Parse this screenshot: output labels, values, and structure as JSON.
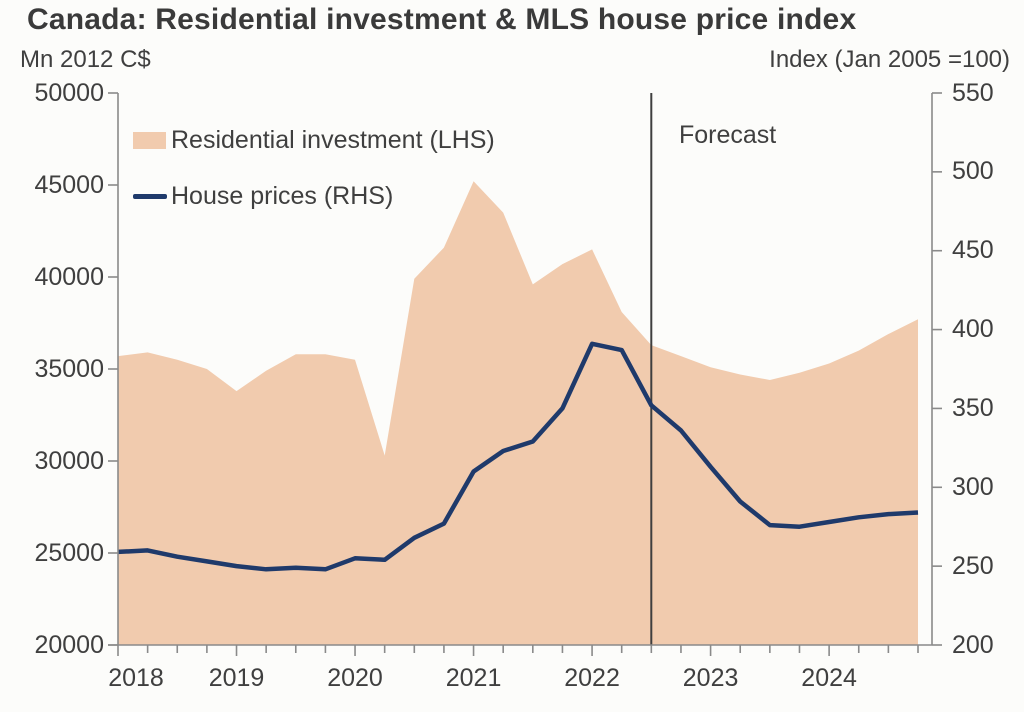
{
  "title": "Canada: Residential investment & MLS house price index",
  "axis_units": {
    "left": "Mn 2012 C$",
    "right": "Index (Jan 2005 =100)"
  },
  "legend": [
    {
      "label": "Residential investment (LHS)",
      "swatch": "area"
    },
    {
      "label": "House prices (RHS)",
      "swatch": "line"
    }
  ],
  "annotations": {
    "forecast_label": "Forecast",
    "forecast_start": "2022Q3"
  },
  "colors": {
    "area_fill": "#f1cbae",
    "line": "#1f3a6b",
    "axis": "#8a8a8a",
    "text": "#3f3f3f",
    "forecast_divider": "#3f3f3f",
    "background": "#fcfcfa"
  },
  "chart_data": {
    "type": "area+line",
    "title": "Canada: Residential investment & MLS house price index",
    "frequency": "quarterly",
    "grid": false,
    "legend_position": "top-left-inside",
    "x": [
      "2018Q1",
      "2018Q2",
      "2018Q3",
      "2018Q4",
      "2019Q1",
      "2019Q2",
      "2019Q3",
      "2019Q4",
      "2020Q1",
      "2020Q2",
      "2020Q3",
      "2020Q4",
      "2021Q1",
      "2021Q2",
      "2021Q3",
      "2021Q4",
      "2022Q1",
      "2022Q2",
      "2022Q3",
      "2022Q4",
      "2023Q1",
      "2023Q2",
      "2023Q3",
      "2023Q4",
      "2024Q1",
      "2024Q2",
      "2024Q3",
      "2024Q4"
    ],
    "x_year_labels": [
      "2018",
      "2019",
      "2020",
      "2021",
      "2022",
      "2023",
      "2024"
    ],
    "series": [
      {
        "name": "Residential investment (LHS)",
        "type": "area",
        "axis": "left",
        "color": "#f1cbae",
        "values": [
          35700,
          35900,
          35500,
          35000,
          33800,
          34900,
          35800,
          35800,
          35500,
          30300,
          39900,
          41600,
          45200,
          43500,
          39600,
          40700,
          41500,
          38100,
          36300,
          35700,
          35100,
          34700,
          34400,
          34800,
          35300,
          36000,
          36900,
          37700
        ]
      },
      {
        "name": "House prices (RHS)",
        "type": "line",
        "axis": "right",
        "color": "#1f3a6b",
        "values": [
          259,
          260,
          256,
          253,
          250,
          248,
          249,
          248,
          255,
          254,
          268,
          277,
          310,
          323,
          329,
          350,
          391,
          387,
          352,
          336,
          313,
          291,
          276,
          275,
          278,
          281,
          283,
          284
        ]
      }
    ],
    "left_axis": {
      "label": "Mn 2012 C$",
      "min": 20000,
      "max": 50000,
      "ticks": [
        20000,
        25000,
        30000,
        35000,
        40000,
        45000,
        50000
      ]
    },
    "right_axis": {
      "label": "Index (Jan 2005 =100)",
      "min": 200,
      "max": 550,
      "ticks": [
        200,
        250,
        300,
        350,
        400,
        450,
        500,
        550
      ]
    },
    "forecast": {
      "label": "Forecast",
      "start_index": 18,
      "start": "2022Q3"
    }
  }
}
